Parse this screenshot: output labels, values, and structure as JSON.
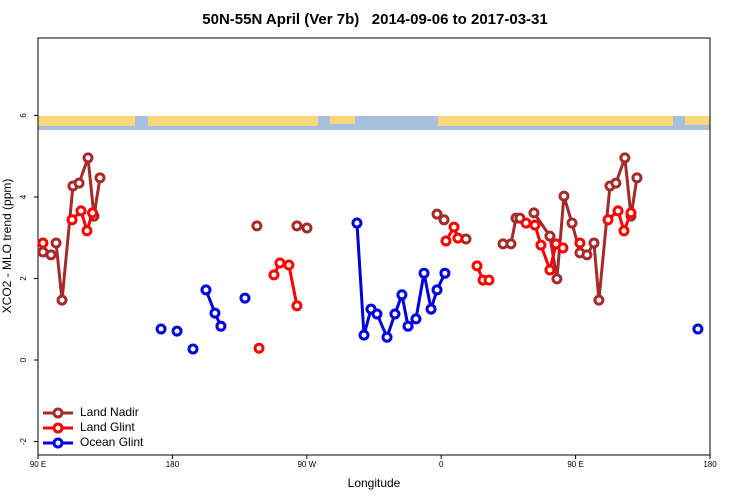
{
  "chart_data": {
    "type": "line",
    "title": "50N-55N April (Ver 7b)   2014-09-06 to 2017-03-31",
    "x_label": "Longitude",
    "y_label": "XCO2 - MLO trend (ppm)",
    "xlim": [
      90,
      540
    ],
    "ylim": [
      -2.33,
      7.9
    ],
    "xticks": [
      {
        "value": 90,
        "label": "90 E"
      },
      180,
      {
        "value": 270,
        "label": "90 W"
      },
      {
        "value": 360,
        "label": "0"
      },
      {
        "value": 450,
        "label": "90 E"
      },
      {
        "value": 540,
        "label": "180"
      }
    ],
    "yticks": [
      -2,
      0,
      2,
      4,
      6
    ],
    "legend": "bottom-left",
    "series": [
      {
        "name": "Land Nadir",
        "color": "#a52a2a",
        "x": [
          93.3,
          98.7,
          null,
          102.1,
          106.1,
          113.4,
          117.5,
          123.5,
          127.5,
          131.5,
          null,
          236.6,
          null,
          263.4,
          270.1,
          null,
          357.2,
          361.9,
          null,
          376.6,
          null,
          401.4,
          406.7,
          410.1,
          412.7,
          null,
          422.1,
          432.8,
          437.5,
          442.2,
          447.6,
          452.9,
          457.6,
          462.3,
          465.6,
          473,
          477,
          483,
          487.1,
          491.1
        ],
        "values": [
          2.65,
          2.58,
          null,
          2.87,
          1.47,
          4.27,
          4.34,
          4.96,
          3.53,
          4.47,
          null,
          3.29,
          null,
          3.29,
          3.24,
          null,
          3.58,
          3.44,
          null,
          2.97,
          null,
          2.85,
          2.85,
          3.48,
          3.48,
          null,
          3.61,
          3.04,
          1.99,
          4.02,
          3.36,
          2.63,
          2.58,
          2.87,
          1.47,
          4.27,
          4.34,
          4.96,
          3.53,
          4.47
        ]
      },
      {
        "name": "Land Glint",
        "color": "#ff0000",
        "x": [
          93.3,
          null,
          112.8,
          118.8,
          122.8,
          126.5,
          null,
          238,
          null,
          248,
          252,
          258,
          263.4,
          null,
          363.2,
          368.6,
          371.2,
          null,
          384,
          388,
          392,
          null,
          416.8,
          422.8,
          426.8,
          432.8,
          436.9,
          441.5,
          null,
          452.9,
          null,
          471.7,
          478.4,
          482.4,
          487.1
        ],
        "values": [
          2.87,
          null,
          3.44,
          3.66,
          3.17,
          3.61,
          null,
          0.29,
          null,
          2.09,
          2.38,
          2.33,
          1.33,
          null,
          2.92,
          3.26,
          2.99,
          null,
          2.31,
          1.96,
          1.96,
          null,
          3.36,
          3.31,
          2.82,
          2.21,
          2.85,
          2.75,
          null,
          2.87,
          null,
          3.44,
          3.66,
          3.17,
          3.61
        ]
      },
      {
        "name": "Ocean Glint",
        "color": "#0000dd",
        "x": [
          172.4,
          null,
          183.1,
          null,
          193.8,
          null,
          202.5,
          208.5,
          212.5,
          null,
          228.6,
          null,
          303.6,
          308.3,
          313,
          317,
          323.7,
          329,
          333.7,
          337.8,
          343.1,
          348.5,
          353.2,
          357.2,
          362.5,
          null,
          531.9
        ],
        "values": [
          0.76,
          null,
          0.71,
          null,
          0.27,
          null,
          1.72,
          1.15,
          0.83,
          null,
          1.52,
          null,
          3.36,
          0.61,
          1.25,
          1.13,
          0.56,
          1.13,
          1.6,
          0.83,
          1.01,
          2.13,
          1.25,
          1.72,
          2.13,
          null,
          0.76
        ]
      }
    ]
  }
}
